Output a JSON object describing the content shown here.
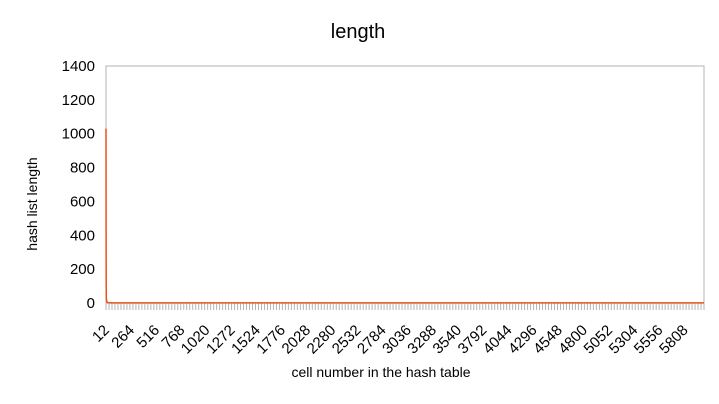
{
  "chart_data": {
    "type": "line",
    "title": "length",
    "xlabel": "cell number in the hash table",
    "ylabel": "hash list length",
    "ylim": [
      0,
      1400
    ],
    "yticks": [
      0,
      200,
      400,
      600,
      800,
      1000,
      1200,
      1400
    ],
    "xlim": [
      12,
      6000
    ],
    "xtick_labels": [
      "12",
      "264",
      "516",
      "768",
      "1020",
      "1272",
      "1524",
      "1776",
      "2028",
      "2280",
      "2532",
      "2784",
      "3036",
      "3288",
      "3540",
      "3792",
      "4044",
      "4296",
      "4548",
      "4800",
      "5052",
      "5304",
      "5556",
      "5808"
    ],
    "grid": false,
    "legend": "none",
    "series": [
      {
        "color": "#e8521c",
        "x": [
          12,
          13,
          14,
          15,
          20,
          30,
          60,
          120,
          400,
          1000,
          2000,
          3000,
          4000,
          5000,
          6000
        ],
        "values": [
          1030,
          420,
          120,
          30,
          6,
          2,
          1,
          1,
          1,
          1,
          1,
          1,
          1,
          1,
          1
        ]
      }
    ]
  }
}
